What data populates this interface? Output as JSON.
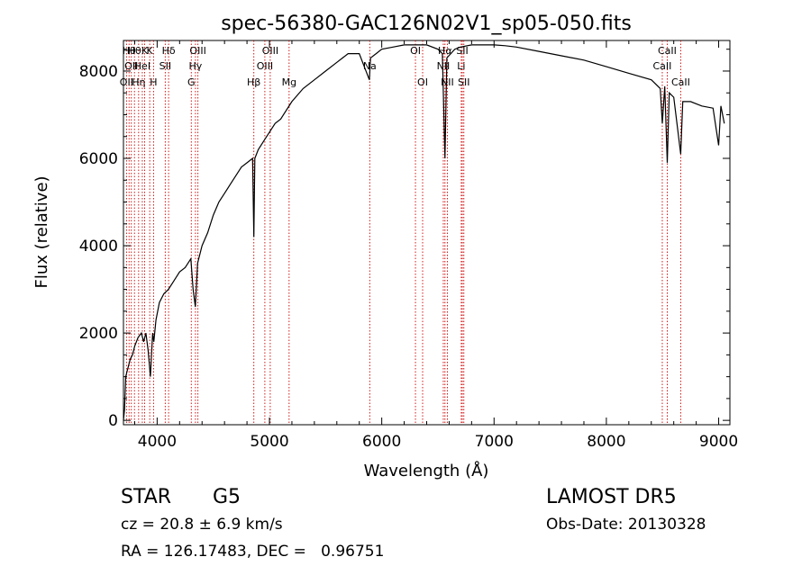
{
  "chart_data": {
    "type": "line",
    "title": "spec-56380-GAC126N02V1_sp05-050.fits",
    "xlabel": "Wavelength (Å)",
    "ylabel": "Flux (relative)",
    "xlim": [
      3700,
      9100
    ],
    "ylim": [
      -100,
      8700
    ],
    "xticks": [
      4000,
      5000,
      6000,
      7000,
      8000,
      9000
    ],
    "yticks": [
      0,
      2000,
      4000,
      6000,
      8000
    ],
    "xtick_labels": [
      "4000",
      "5000",
      "6000",
      "7000",
      "8000",
      "9000"
    ],
    "ytick_labels": [
      "0",
      "2000",
      "4000",
      "6000",
      "8000"
    ],
    "grid": false,
    "line_color": "#000000",
    "marker_color": "#cc0000",
    "series": [
      {
        "x": [
          3700,
          3710,
          3720,
          3740,
          3760,
          3780,
          3800,
          3830,
          3860,
          3880,
          3900,
          3920,
          3940,
          3960,
          3970,
          3990,
          4020,
          4060,
          4100,
          4150,
          4200,
          4250,
          4300,
          4320,
          4340,
          4360,
          4400,
          4450,
          4500,
          4550,
          4600,
          4650,
          4700,
          4750,
          4800,
          4850,
          4861,
          4870,
          4900,
          4950,
          5000,
          5050,
          5100,
          5200,
          5300,
          5400,
          5500,
          5600,
          5700,
          5800,
          5890,
          5900,
          5950,
          6000,
          6100,
          6200,
          6300,
          6400,
          6500,
          6540,
          6563,
          6580,
          6650,
          6700,
          6800,
          6900,
          7000,
          7100,
          7200,
          7400,
          7600,
          7800,
          8000,
          8200,
          8400,
          8480,
          8498,
          8520,
          8542,
          8560,
          8600,
          8662,
          8680,
          8750,
          8850,
          8950,
          9000,
          9020,
          9050
        ],
        "y": [
          0,
          250,
          1000,
          1200,
          1400,
          1500,
          1700,
          1900,
          2000,
          1800,
          2000,
          1600,
          1000,
          2000,
          1800,
          2300,
          2700,
          2900,
          3000,
          3200,
          3400,
          3500,
          3700,
          3000,
          2600,
          3600,
          4000,
          4300,
          4700,
          5000,
          5200,
          5400,
          5600,
          5800,
          5900,
          6000,
          4200,
          6000,
          6200,
          6400,
          6600,
          6800,
          6900,
          7300,
          7600,
          7800,
          8000,
          8200,
          8400,
          8400,
          7800,
          8300,
          8400,
          8500,
          8550,
          8600,
          8600,
          8600,
          8500,
          8400,
          6000,
          8300,
          8500,
          8550,
          8600,
          8600,
          8600,
          8580,
          8550,
          8450,
          8350,
          8250,
          8100,
          7950,
          7800,
          7600,
          6800,
          7650,
          5900,
          7500,
          7400,
          6100,
          7300,
          7300,
          7200,
          7150,
          6300,
          7200,
          6800
        ]
      }
    ],
    "lines": [
      {
        "wl": 3727,
        "labels": [
          "OII"
        ],
        "row": 3
      },
      {
        "wl": 3750,
        "labels": [
          "Hθ"
        ],
        "row": 1
      },
      {
        "wl": 3770,
        "labels": [
          "OII"
        ],
        "row": 2
      },
      {
        "wl": 3798,
        "labels": [
          "Hθ"
        ],
        "row": 1
      },
      {
        "wl": 3835,
        "labels": [
          "Hη"
        ],
        "row": 3
      },
      {
        "wl": 3868,
        "labels": [
          "HeI"
        ],
        "row": 2
      },
      {
        "wl": 3889,
        "labels": [
          "K"
        ],
        "row": 1
      },
      {
        "wl": 3934,
        "labels": [
          "K"
        ],
        "row": 1
      },
      {
        "wl": 3968,
        "labels": [
          "H"
        ],
        "row": 3
      },
      {
        "wl": 4072,
        "labels": [
          "SII"
        ],
        "row": 2
      },
      {
        "wl": 4102,
        "labels": [
          "Hδ"
        ],
        "row": 1
      },
      {
        "wl": 4304,
        "labels": [
          "G"
        ],
        "row": 3
      },
      {
        "wl": 4341,
        "labels": [
          "Hγ"
        ],
        "row": 2
      },
      {
        "wl": 4363,
        "labels": [
          "OIII"
        ],
        "row": 1
      },
      {
        "wl": 4861,
        "labels": [
          "Hβ"
        ],
        "row": 3
      },
      {
        "wl": 4959,
        "labels": [
          "OIII"
        ],
        "row": 2
      },
      {
        "wl": 5007,
        "labels": [
          "OIII"
        ],
        "row": 1
      },
      {
        "wl": 5175,
        "labels": [
          "Mg"
        ],
        "row": 3
      },
      {
        "wl": 5893,
        "labels": [
          "Na"
        ],
        "row": 2
      },
      {
        "wl": 6300,
        "labels": [
          "OI"
        ],
        "row": 1
      },
      {
        "wl": 6364,
        "labels": [
          "OI"
        ],
        "row": 3
      },
      {
        "wl": 6548,
        "labels": [
          "NII"
        ],
        "row": 2
      },
      {
        "wl": 6563,
        "labels": [
          "Hα"
        ],
        "row": 1
      },
      {
        "wl": 6584,
        "labels": [
          "NII"
        ],
        "row": 3
      },
      {
        "wl": 6708,
        "labels": [
          "Li"
        ],
        "row": 2
      },
      {
        "wl": 6717,
        "labels": [
          "SII"
        ],
        "row": 1
      },
      {
        "wl": 6731,
        "labels": [
          "SII"
        ],
        "row": 3
      },
      {
        "wl": 8498,
        "labels": [
          "CaII"
        ],
        "row": 2
      },
      {
        "wl": 8542,
        "labels": [
          "CaII"
        ],
        "row": 1
      },
      {
        "wl": 8662,
        "labels": [
          "CaII"
        ],
        "row": 3
      }
    ]
  },
  "info": {
    "class_label": "STAR",
    "subclass_label": "G5",
    "survey_label": "LAMOST DR5",
    "cz_text": "cz = 20.8 ± 6.9 km/s",
    "obs_date_text": "Obs-Date: 20130328",
    "coords_text": "RA = 126.17483, DEC =   0.96751"
  }
}
